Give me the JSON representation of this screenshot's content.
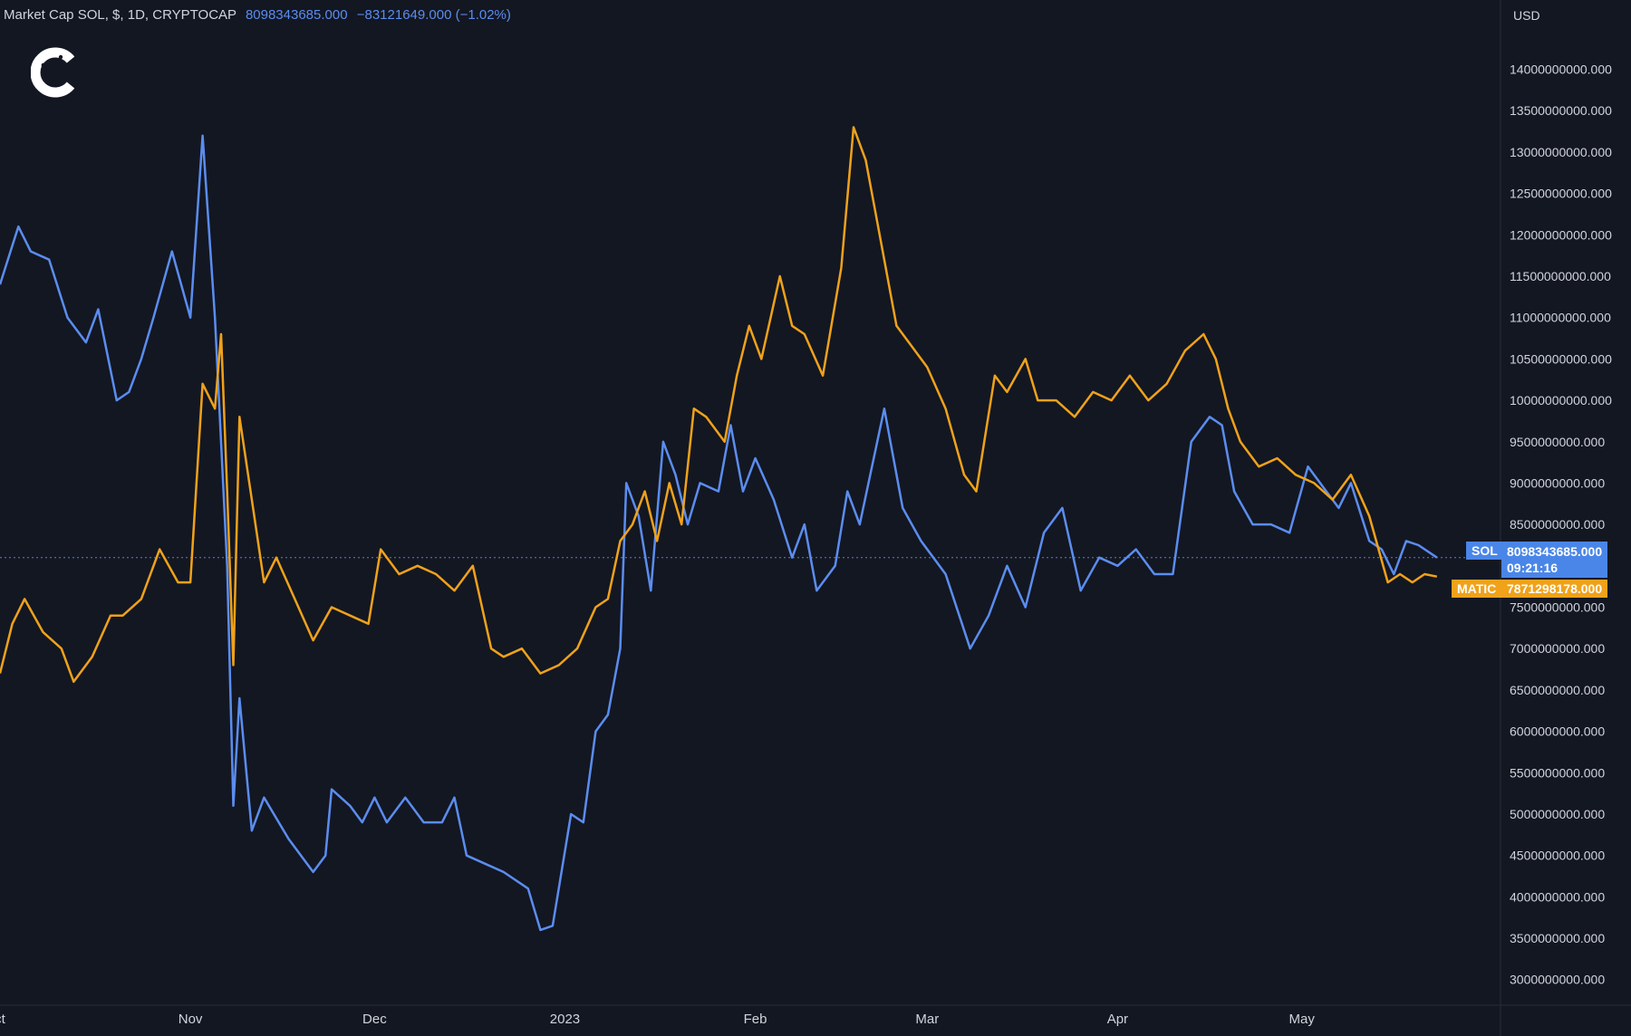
{
  "header": {
    "title": "Market Cap SOL, $, 1D, CRYPTOCAP",
    "value": "8098343685.000",
    "change": "−83121649.000 (−1.02%)"
  },
  "logo": {
    "icon": "c-logo-icon"
  },
  "colors": {
    "background": "#131722",
    "sol": "#5b8def",
    "matic": "#f0a21a",
    "axis_text": "#d1d4dc",
    "crosshair": "#6b7cb8"
  },
  "sol_tag": {
    "label": "SOL",
    "value": "8098343685.000",
    "countdown": "09:21:16"
  },
  "matic_tag": {
    "label": "MATIC",
    "value": "7871298178.000"
  },
  "chart_data": {
    "type": "line",
    "y_unit": "USD",
    "ylim": [
      2800000000,
      14400000000
    ],
    "y_ticks": [
      "14000000000.000",
      "13500000000.000",
      "13000000000.000",
      "12500000000.000",
      "12000000000.000",
      "11500000000.000",
      "11000000000.000",
      "10500000000.000",
      "10000000000.000",
      "9500000000.000",
      "9000000000.000",
      "8500000000.000",
      "8000000000.000",
      "7500000000.000",
      "7000000000.000",
      "6500000000.000",
      "6000000000.000",
      "5500000000.000",
      "5000000000.000",
      "4500000000.000",
      "4000000000.000",
      "3500000000.000",
      "3000000000.000"
    ],
    "x_range": [
      "2022-10-01",
      "2023-05-31"
    ],
    "x_ticks": [
      {
        "date": "2022-10-01",
        "label": "ct"
      },
      {
        "date": "2022-11-01",
        "label": "Nov"
      },
      {
        "date": "2022-12-01",
        "label": "Dec"
      },
      {
        "date": "2023-01-01",
        "label": "2023"
      },
      {
        "date": "2023-02-01",
        "label": "Feb"
      },
      {
        "date": "2023-03-01",
        "label": "Mar"
      },
      {
        "date": "2023-04-01",
        "label": "Apr"
      },
      {
        "date": "2023-05-01",
        "label": "May"
      }
    ],
    "series": [
      {
        "name": "SOL",
        "color": "#5b8def",
        "points": [
          [
            "2022-10-01",
            11400000000
          ],
          [
            "2022-10-04",
            12100000000
          ],
          [
            "2022-10-06",
            11800000000
          ],
          [
            "2022-10-09",
            11700000000
          ],
          [
            "2022-10-12",
            11000000000
          ],
          [
            "2022-10-15",
            10700000000
          ],
          [
            "2022-10-17",
            11100000000
          ],
          [
            "2022-10-20",
            10000000000
          ],
          [
            "2022-10-22",
            10100000000
          ],
          [
            "2022-10-24",
            10500000000
          ],
          [
            "2022-10-26",
            11000000000
          ],
          [
            "2022-10-29",
            11800000000
          ],
          [
            "2022-11-01",
            11000000000
          ],
          [
            "2022-11-03",
            13200000000
          ],
          [
            "2022-11-05",
            11000000000
          ],
          [
            "2022-11-07",
            8000000000
          ],
          [
            "2022-11-08",
            5100000000
          ],
          [
            "2022-11-09",
            6400000000
          ],
          [
            "2022-11-11",
            4800000000
          ],
          [
            "2022-11-13",
            5200000000
          ],
          [
            "2022-11-17",
            4700000000
          ],
          [
            "2022-11-21",
            4300000000
          ],
          [
            "2022-11-23",
            4500000000
          ],
          [
            "2022-11-24",
            5300000000
          ],
          [
            "2022-11-27",
            5100000000
          ],
          [
            "2022-11-29",
            4900000000
          ],
          [
            "2022-12-01",
            5200000000
          ],
          [
            "2022-12-03",
            4900000000
          ],
          [
            "2022-12-06",
            5200000000
          ],
          [
            "2022-12-09",
            4900000000
          ],
          [
            "2022-12-12",
            4900000000
          ],
          [
            "2022-12-14",
            5200000000
          ],
          [
            "2022-12-16",
            4500000000
          ],
          [
            "2022-12-19",
            4400000000
          ],
          [
            "2022-12-22",
            4300000000
          ],
          [
            "2022-12-26",
            4100000000
          ],
          [
            "2022-12-28",
            3600000000
          ],
          [
            "2022-12-30",
            3650000000
          ],
          [
            "2023-01-02",
            5000000000
          ],
          [
            "2023-01-04",
            4900000000
          ],
          [
            "2023-01-06",
            6000000000
          ],
          [
            "2023-01-08",
            6200000000
          ],
          [
            "2023-01-10",
            7000000000
          ],
          [
            "2023-01-11",
            9000000000
          ],
          [
            "2023-01-13",
            8600000000
          ],
          [
            "2023-01-15",
            7700000000
          ],
          [
            "2023-01-17",
            9500000000
          ],
          [
            "2023-01-19",
            9100000000
          ],
          [
            "2023-01-21",
            8500000000
          ],
          [
            "2023-01-23",
            9000000000
          ],
          [
            "2023-01-26",
            8900000000
          ],
          [
            "2023-01-28",
            9700000000
          ],
          [
            "2023-01-30",
            8900000000
          ],
          [
            "2023-02-01",
            9300000000
          ],
          [
            "2023-02-04",
            8800000000
          ],
          [
            "2023-02-07",
            8100000000
          ],
          [
            "2023-02-09",
            8500000000
          ],
          [
            "2023-02-11",
            7700000000
          ],
          [
            "2023-02-14",
            8000000000
          ],
          [
            "2023-02-16",
            8900000000
          ],
          [
            "2023-02-18",
            8500000000
          ],
          [
            "2023-02-22",
            9900000000
          ],
          [
            "2023-02-25",
            8700000000
          ],
          [
            "2023-02-28",
            8300000000
          ],
          [
            "2023-03-04",
            7900000000
          ],
          [
            "2023-03-08",
            7000000000
          ],
          [
            "2023-03-11",
            7400000000
          ],
          [
            "2023-03-14",
            8000000000
          ],
          [
            "2023-03-17",
            7500000000
          ],
          [
            "2023-03-20",
            8400000000
          ],
          [
            "2023-03-23",
            8700000000
          ],
          [
            "2023-03-26",
            7700000000
          ],
          [
            "2023-03-29",
            8100000000
          ],
          [
            "2023-04-01",
            8000000000
          ],
          [
            "2023-04-04",
            8200000000
          ],
          [
            "2023-04-07",
            7900000000
          ],
          [
            "2023-04-10",
            7900000000
          ],
          [
            "2023-04-13",
            9500000000
          ],
          [
            "2023-04-16",
            9800000000
          ],
          [
            "2023-04-18",
            9700000000
          ],
          [
            "2023-04-20",
            8900000000
          ],
          [
            "2023-04-23",
            8500000000
          ],
          [
            "2023-04-26",
            8500000000
          ],
          [
            "2023-04-29",
            8400000000
          ],
          [
            "2023-05-02",
            9200000000
          ],
          [
            "2023-05-05",
            8900000000
          ],
          [
            "2023-05-07",
            8700000000
          ],
          [
            "2023-05-09",
            9000000000
          ],
          [
            "2023-05-12",
            8300000000
          ],
          [
            "2023-05-14",
            8200000000
          ],
          [
            "2023-05-16",
            7900000000
          ],
          [
            "2023-05-18",
            8300000000
          ],
          [
            "2023-05-20",
            8250000000
          ],
          [
            "2023-05-23",
            8100000000
          ]
        ]
      },
      {
        "name": "MATIC",
        "color": "#f0a21a",
        "points": [
          [
            "2022-10-01",
            6700000000
          ],
          [
            "2022-10-03",
            7300000000
          ],
          [
            "2022-10-05",
            7600000000
          ],
          [
            "2022-10-08",
            7200000000
          ],
          [
            "2022-10-11",
            7000000000
          ],
          [
            "2022-10-13",
            6600000000
          ],
          [
            "2022-10-16",
            6900000000
          ],
          [
            "2022-10-19",
            7400000000
          ],
          [
            "2022-10-21",
            7400000000
          ],
          [
            "2022-10-24",
            7600000000
          ],
          [
            "2022-10-27",
            8200000000
          ],
          [
            "2022-10-30",
            7800000000
          ],
          [
            "2022-11-01",
            7800000000
          ],
          [
            "2022-11-03",
            10200000000
          ],
          [
            "2022-11-05",
            9900000000
          ],
          [
            "2022-11-06",
            10800000000
          ],
          [
            "2022-11-07",
            8900000000
          ],
          [
            "2022-11-08",
            6800000000
          ],
          [
            "2022-11-09",
            9800000000
          ],
          [
            "2022-11-11",
            8800000000
          ],
          [
            "2022-11-13",
            7800000000
          ],
          [
            "2022-11-15",
            8100000000
          ],
          [
            "2022-11-18",
            7600000000
          ],
          [
            "2022-11-21",
            7100000000
          ],
          [
            "2022-11-24",
            7500000000
          ],
          [
            "2022-11-27",
            7400000000
          ],
          [
            "2022-11-30",
            7300000000
          ],
          [
            "2022-12-02",
            8200000000
          ],
          [
            "2022-12-05",
            7900000000
          ],
          [
            "2022-12-08",
            8000000000
          ],
          [
            "2022-12-11",
            7900000000
          ],
          [
            "2022-12-14",
            7700000000
          ],
          [
            "2022-12-17",
            8000000000
          ],
          [
            "2022-12-20",
            7000000000
          ],
          [
            "2022-12-22",
            6900000000
          ],
          [
            "2022-12-25",
            7000000000
          ],
          [
            "2022-12-28",
            6700000000
          ],
          [
            "2022-12-31",
            6800000000
          ],
          [
            "2023-01-03",
            7000000000
          ],
          [
            "2023-01-06",
            7500000000
          ],
          [
            "2023-01-08",
            7600000000
          ],
          [
            "2023-01-10",
            8300000000
          ],
          [
            "2023-01-12",
            8500000000
          ],
          [
            "2023-01-14",
            8900000000
          ],
          [
            "2023-01-16",
            8300000000
          ],
          [
            "2023-01-18",
            9000000000
          ],
          [
            "2023-01-20",
            8500000000
          ],
          [
            "2023-01-22",
            9900000000
          ],
          [
            "2023-01-24",
            9800000000
          ],
          [
            "2023-01-27",
            9500000000
          ],
          [
            "2023-01-29",
            10300000000
          ],
          [
            "2023-01-31",
            10900000000
          ],
          [
            "2023-02-02",
            10500000000
          ],
          [
            "2023-02-05",
            11500000000
          ],
          [
            "2023-02-07",
            10900000000
          ],
          [
            "2023-02-09",
            10800000000
          ],
          [
            "2023-02-12",
            10300000000
          ],
          [
            "2023-02-15",
            11600000000
          ],
          [
            "2023-02-17",
            13300000000
          ],
          [
            "2023-02-19",
            12900000000
          ],
          [
            "2023-02-21",
            12100000000
          ],
          [
            "2023-02-24",
            10900000000
          ],
          [
            "2023-02-27",
            10600000000
          ],
          [
            "2023-03-01",
            10400000000
          ],
          [
            "2023-03-04",
            9900000000
          ],
          [
            "2023-03-07",
            9100000000
          ],
          [
            "2023-03-09",
            8900000000
          ],
          [
            "2023-03-12",
            10300000000
          ],
          [
            "2023-03-14",
            10100000000
          ],
          [
            "2023-03-17",
            10500000000
          ],
          [
            "2023-03-19",
            10000000000
          ],
          [
            "2023-03-22",
            10000000000
          ],
          [
            "2023-03-25",
            9800000000
          ],
          [
            "2023-03-28",
            10100000000
          ],
          [
            "2023-03-31",
            10000000000
          ],
          [
            "2023-04-03",
            10300000000
          ],
          [
            "2023-04-06",
            10000000000
          ],
          [
            "2023-04-09",
            10200000000
          ],
          [
            "2023-04-12",
            10600000000
          ],
          [
            "2023-04-15",
            10800000000
          ],
          [
            "2023-04-17",
            10500000000
          ],
          [
            "2023-04-19",
            9900000000
          ],
          [
            "2023-04-21",
            9500000000
          ],
          [
            "2023-04-24",
            9200000000
          ],
          [
            "2023-04-27",
            9300000000
          ],
          [
            "2023-04-30",
            9100000000
          ],
          [
            "2023-05-03",
            9000000000
          ],
          [
            "2023-05-06",
            8800000000
          ],
          [
            "2023-05-09",
            9100000000
          ],
          [
            "2023-05-12",
            8600000000
          ],
          [
            "2023-05-15",
            7800000000
          ],
          [
            "2023-05-17",
            7900000000
          ],
          [
            "2023-05-19",
            7800000000
          ],
          [
            "2023-05-21",
            7900000000
          ],
          [
            "2023-05-23",
            7870000000
          ]
        ]
      }
    ]
  }
}
